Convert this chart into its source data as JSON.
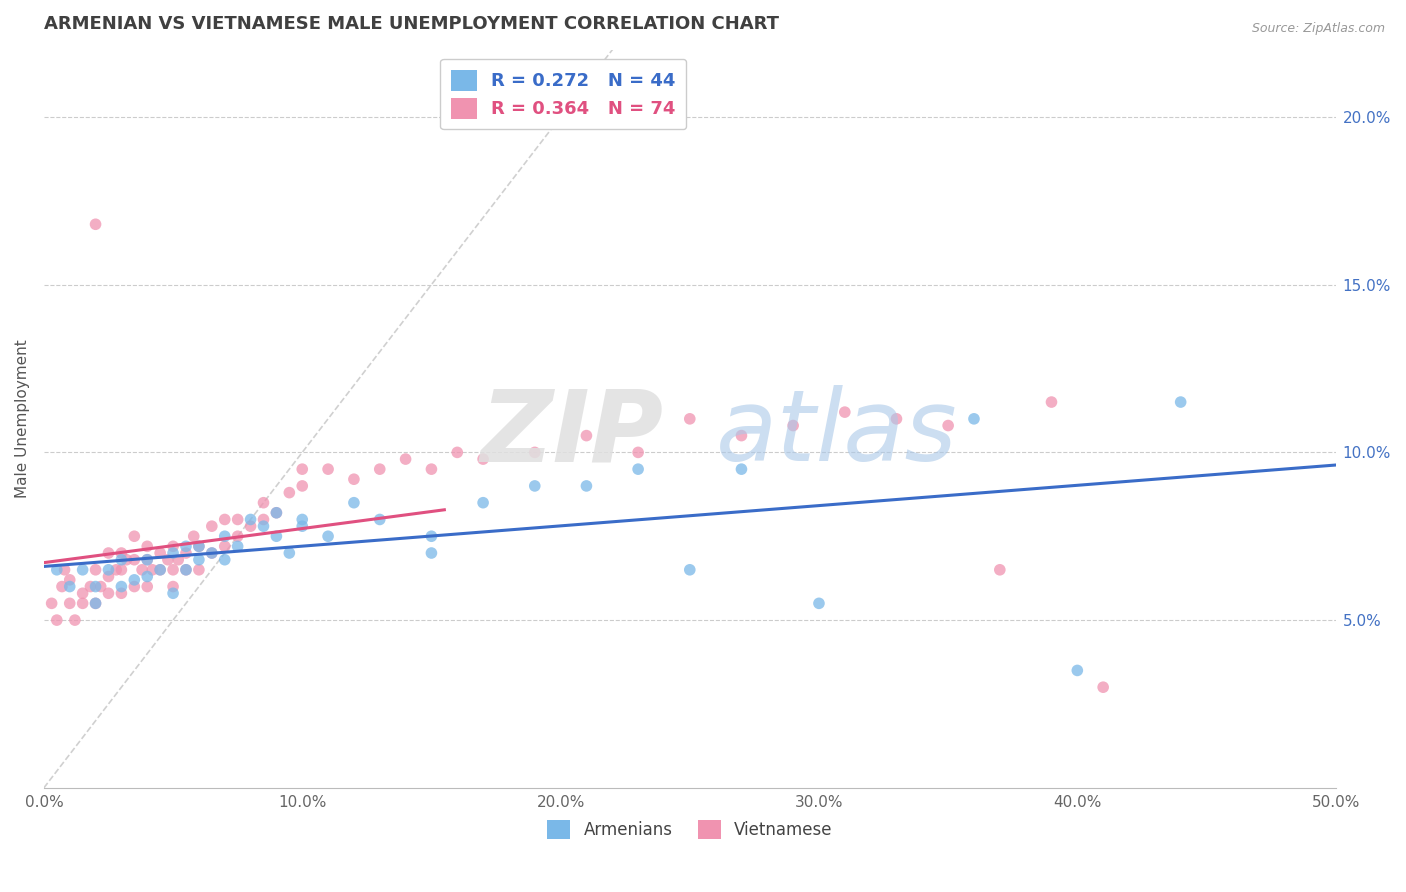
{
  "title": "ARMENIAN VS VIETNAMESE MALE UNEMPLOYMENT CORRELATION CHART",
  "source_text": "Source: ZipAtlas.com",
  "ylabel": "Male Unemployment",
  "xmin": 0.0,
  "xmax": 0.5,
  "ymin": 0.0,
  "ymax": 0.22,
  "yticks": [
    0.05,
    0.1,
    0.15,
    0.2
  ],
  "ytick_labels": [
    "5.0%",
    "10.0%",
    "15.0%",
    "20.0%"
  ],
  "xticks": [
    0.0,
    0.1,
    0.2,
    0.3,
    0.4,
    0.5
  ],
  "xtick_labels": [
    "0.0%",
    "10.0%",
    "20.0%",
    "30.0%",
    "40.0%",
    "50.0%"
  ],
  "armenians_color": "#7ab8e8",
  "vietnamese_color": "#f093b0",
  "legend_armenians": "Armenians",
  "legend_vietnamese": "Vietnamese",
  "r_armenians": 0.272,
  "n_armenians": 44,
  "r_vietnamese": 0.364,
  "n_vietnamese": 74,
  "diagonal_line_color": "#d0d0d0",
  "armenians_line_color": "#3a6cc8",
  "vietnamese_line_color": "#e05080",
  "title_color": "#404040",
  "title_fontsize": 13,
  "armenians_x": [
    0.005,
    0.01,
    0.015,
    0.02,
    0.02,
    0.025,
    0.03,
    0.03,
    0.035,
    0.04,
    0.04,
    0.045,
    0.05,
    0.05,
    0.055,
    0.055,
    0.06,
    0.06,
    0.065,
    0.07,
    0.07,
    0.075,
    0.08,
    0.085,
    0.09,
    0.09,
    0.095,
    0.1,
    0.1,
    0.11,
    0.12,
    0.13,
    0.15,
    0.15,
    0.17,
    0.19,
    0.21,
    0.23,
    0.25,
    0.27,
    0.3,
    0.36,
    0.4,
    0.44
  ],
  "armenians_y": [
    0.065,
    0.06,
    0.065,
    0.055,
    0.06,
    0.065,
    0.06,
    0.068,
    0.062,
    0.063,
    0.068,
    0.065,
    0.058,
    0.07,
    0.072,
    0.065,
    0.068,
    0.072,
    0.07,
    0.075,
    0.068,
    0.072,
    0.08,
    0.078,
    0.075,
    0.082,
    0.07,
    0.078,
    0.08,
    0.075,
    0.085,
    0.08,
    0.07,
    0.075,
    0.085,
    0.09,
    0.09,
    0.095,
    0.065,
    0.095,
    0.055,
    0.11,
    0.035,
    0.115
  ],
  "vietnamese_x": [
    0.003,
    0.005,
    0.007,
    0.008,
    0.01,
    0.01,
    0.012,
    0.015,
    0.015,
    0.018,
    0.02,
    0.02,
    0.02,
    0.022,
    0.025,
    0.025,
    0.025,
    0.028,
    0.03,
    0.03,
    0.03,
    0.032,
    0.035,
    0.035,
    0.035,
    0.038,
    0.04,
    0.04,
    0.04,
    0.042,
    0.045,
    0.045,
    0.048,
    0.05,
    0.05,
    0.05,
    0.052,
    0.055,
    0.055,
    0.058,
    0.06,
    0.06,
    0.065,
    0.065,
    0.07,
    0.07,
    0.075,
    0.075,
    0.08,
    0.085,
    0.085,
    0.09,
    0.095,
    0.1,
    0.1,
    0.11,
    0.12,
    0.13,
    0.14,
    0.15,
    0.16,
    0.17,
    0.19,
    0.21,
    0.23,
    0.25,
    0.27,
    0.29,
    0.31,
    0.33,
    0.35,
    0.37,
    0.39,
    0.41
  ],
  "vietnamese_y": [
    0.055,
    0.05,
    0.06,
    0.065,
    0.062,
    0.055,
    0.05,
    0.055,
    0.058,
    0.06,
    0.055,
    0.065,
    0.168,
    0.06,
    0.063,
    0.058,
    0.07,
    0.065,
    0.058,
    0.07,
    0.065,
    0.068,
    0.06,
    0.068,
    0.075,
    0.065,
    0.06,
    0.068,
    0.072,
    0.065,
    0.07,
    0.065,
    0.068,
    0.065,
    0.072,
    0.06,
    0.068,
    0.07,
    0.065,
    0.075,
    0.065,
    0.072,
    0.07,
    0.078,
    0.072,
    0.08,
    0.075,
    0.08,
    0.078,
    0.08,
    0.085,
    0.082,
    0.088,
    0.09,
    0.095,
    0.095,
    0.092,
    0.095,
    0.098,
    0.095,
    0.1,
    0.098,
    0.1,
    0.105,
    0.1,
    0.11,
    0.105,
    0.108,
    0.112,
    0.11,
    0.108,
    0.065,
    0.115,
    0.03
  ]
}
